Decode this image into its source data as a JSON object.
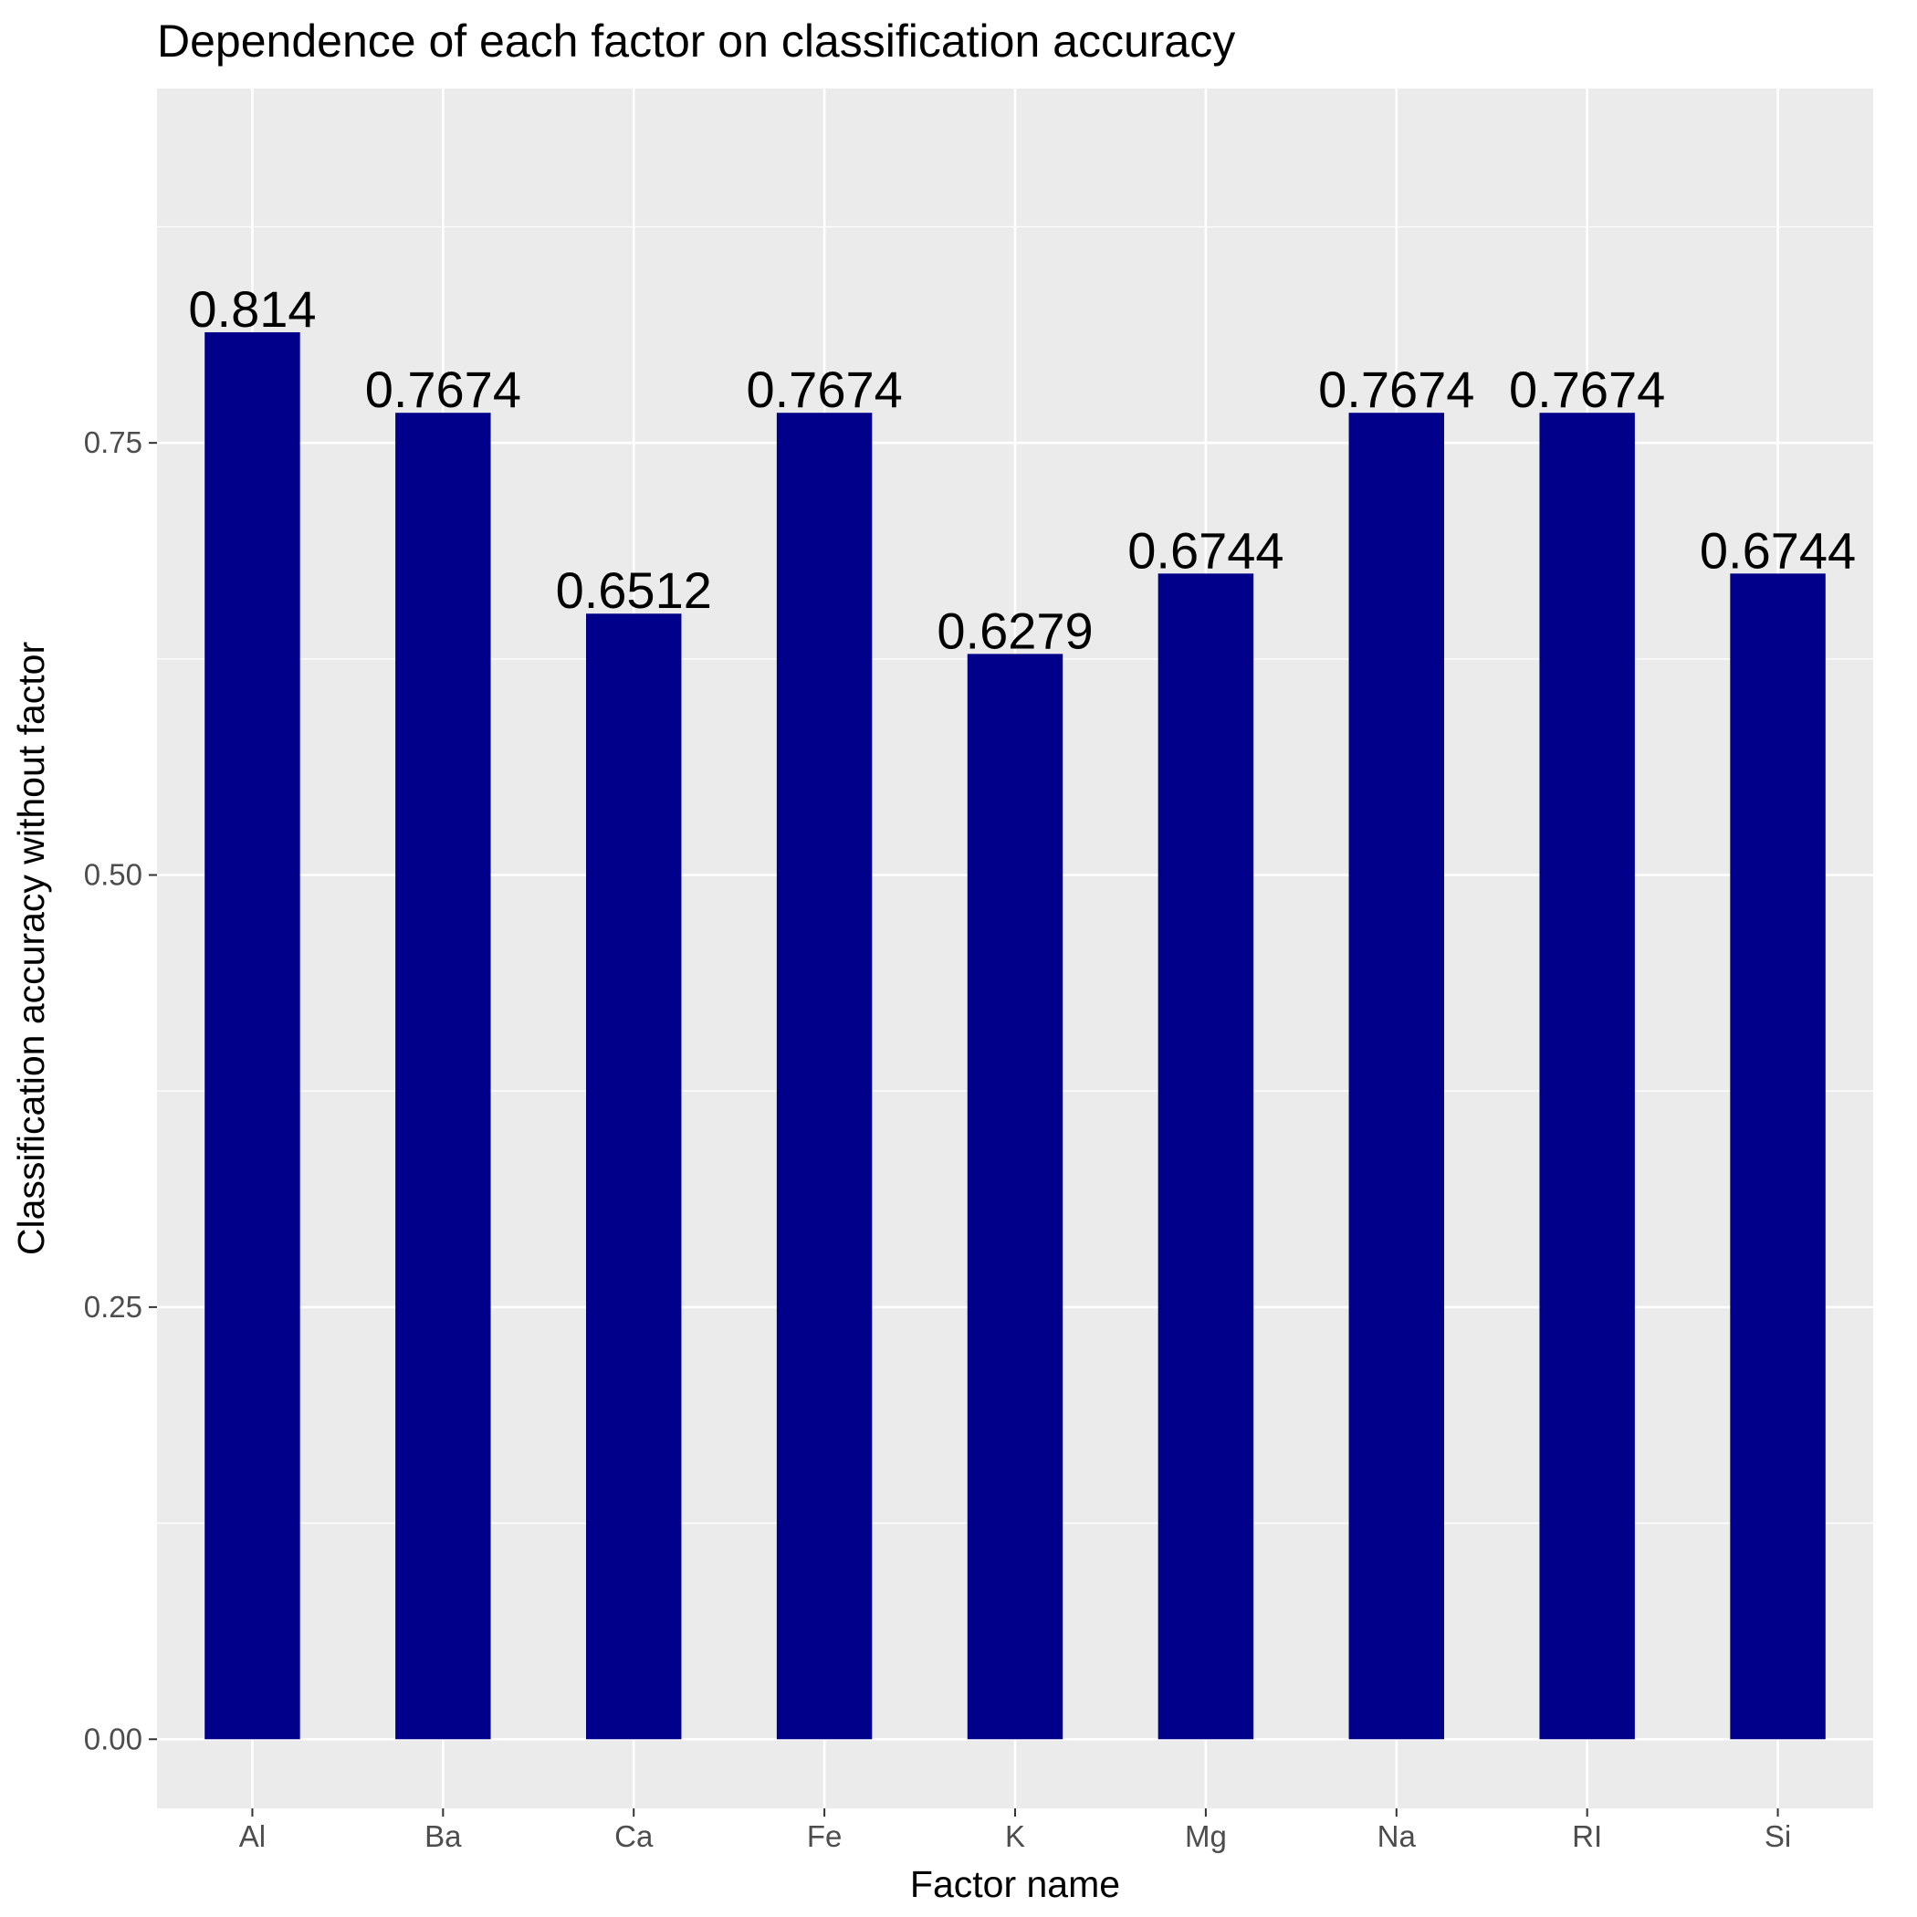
{
  "chart_data": {
    "type": "bar",
    "title": "Dependence of each factor on classification accuracy",
    "xlabel": "Factor name",
    "ylabel": "Classification accuracy without factor",
    "categories": [
      "Al",
      "Ba",
      "Ca",
      "Fe",
      "K",
      "Mg",
      "Na",
      "RI",
      "Si"
    ],
    "values": [
      0.814,
      0.7674,
      0.6512,
      0.7674,
      0.6279,
      0.6744,
      0.7674,
      0.7674,
      0.6744
    ],
    "data_labels": [
      "0.814",
      "0.7674",
      "0.6512",
      "0.7674",
      "0.6279",
      "0.6744",
      "0.7674",
      "0.7674",
      "0.6744"
    ],
    "yticks": [
      0,
      0.25,
      0.5,
      0.75
    ],
    "ytick_labels": [
      "0.00",
      "0.25",
      "0.50",
      "0.75"
    ],
    "ylim": [
      -0.04,
      0.955
    ],
    "grid": true,
    "legend": "none",
    "colors": {
      "bar": "#00008B",
      "panel_background": "#EBEBEB",
      "grid_line": "#FFFFFF",
      "tick_mark": "#333333"
    }
  }
}
